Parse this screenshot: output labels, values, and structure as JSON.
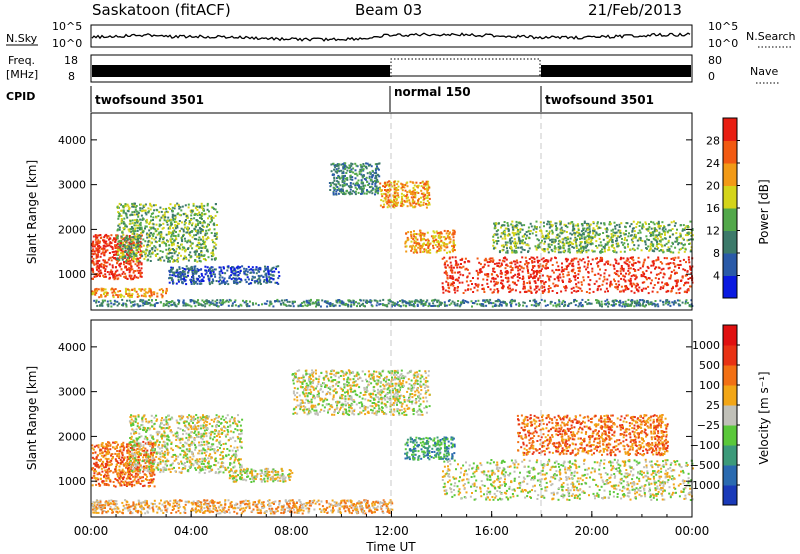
{
  "header": {
    "station": "Saskatoon (fitACF)",
    "beam": "Beam 03",
    "date": "21/Feb/2013"
  },
  "noise_panel": {
    "left_label": "N.Sky",
    "right_label": "N.Search",
    "tick_top": "10^5",
    "tick_bottom": "10^0"
  },
  "freq_panel": {
    "label_line1": "Freq.",
    "label_line2": "[MHz]",
    "left_ticks": [
      "18",
      "8"
    ],
    "right_ticks": [
      "80",
      "0"
    ],
    "right_label": "Nave"
  },
  "cpid_panel": {
    "label": "CPID",
    "segments": [
      {
        "name": "twofsound 3501",
        "start_hour": 0
      },
      {
        "name": "normal 150",
        "start_hour": 12
      },
      {
        "name": "twofsound 3501",
        "start_hour": 18
      }
    ]
  },
  "chart_data": [
    {
      "type": "heatmap",
      "name": "power",
      "ylabel": "Slant Range [km]",
      "ylim": [
        200,
        4600
      ],
      "yticks": [
        "1000",
        "2000",
        "3000",
        "4000"
      ],
      "ytick_values": [
        1000,
        2000,
        3000,
        4000
      ],
      "colorbar": {
        "label": "Power [dB]",
        "tick_labels": [
          "4",
          "8",
          "12",
          "16",
          "20",
          "24",
          "28"
        ],
        "colors": [
          "#0a1ae0",
          "#2a5aa8",
          "#3c7a6a",
          "#52a84a",
          "#d4d41a",
          "#f29a16",
          "#f25a12",
          "#e81e12"
        ]
      },
      "scatter_regions": [
        {
          "x0": 0.0,
          "x1": 2.0,
          "y0": 900,
          "y1": 1900,
          "level": 7
        },
        {
          "x0": 0.0,
          "x1": 3.0,
          "y0": 500,
          "y1": 700,
          "level": 5
        },
        {
          "x0": 1.0,
          "x1": 5.0,
          "y0": 1300,
          "y1": 2600,
          "level": 3
        },
        {
          "x0": 3.0,
          "x1": 7.5,
          "y0": 800,
          "y1": 1200,
          "level": 1
        },
        {
          "x0": 9.5,
          "x1": 11.5,
          "y0": 2800,
          "y1": 3500,
          "level": 2
        },
        {
          "x0": 11.5,
          "x1": 13.5,
          "y0": 2500,
          "y1": 3100,
          "level": 5
        },
        {
          "x0": 12.5,
          "x1": 14.5,
          "y0": 1500,
          "y1": 2000,
          "level": 5
        },
        {
          "x0": 14.0,
          "x1": 24.0,
          "y0": 600,
          "y1": 1400,
          "level": 7
        },
        {
          "x0": 16.0,
          "x1": 24.0,
          "y0": 1500,
          "y1": 2200,
          "level": 3
        },
        {
          "x0": 0.0,
          "x1": 24.0,
          "y0": 300,
          "y1": 450,
          "level": 2
        }
      ]
    },
    {
      "type": "heatmap",
      "name": "velocity",
      "xlabel": "Time UT",
      "ylabel": "Slant Range [km]",
      "ylim": [
        200,
        4600
      ],
      "yticks": [
        "1000",
        "2000",
        "3000",
        "4000"
      ],
      "ytick_values": [
        1000,
        2000,
        3000,
        4000
      ],
      "xticks": [
        "00:00",
        "04:00",
        "08:00",
        "12:00",
        "16:00",
        "20:00",
        "00:00"
      ],
      "xlim": [
        0,
        24
      ],
      "colorbar": {
        "label": "Velocity [m s⁻¹]",
        "tick_labels": [
          "1000",
          "500",
          "100",
          "25",
          "−25",
          "−100",
          "−500",
          "−1000"
        ],
        "colors": [
          "#1a3ab8",
          "#2a6ab0",
          "#3c9a7a",
          "#5ac83a",
          "#c0c0b8",
          "#f2a616",
          "#f27014",
          "#e83214",
          "#e01010"
        ]
      },
      "scatter_regions": [
        {
          "x0": 0.0,
          "x1": 2.5,
          "y0": 900,
          "y1": 1900,
          "level": 6
        },
        {
          "x0": 1.5,
          "x1": 6.0,
          "y0": 1200,
          "y1": 2500,
          "level": 4
        },
        {
          "x0": 5.5,
          "x1": 8.0,
          "y0": 1000,
          "y1": 1300,
          "level": 4
        },
        {
          "x0": 8.0,
          "x1": 13.5,
          "y0": 2500,
          "y1": 3500,
          "level": 4
        },
        {
          "x0": 12.5,
          "x1": 14.5,
          "y0": 1500,
          "y1": 2000,
          "level": 2
        },
        {
          "x0": 14.0,
          "x1": 24.0,
          "y0": 600,
          "y1": 1500,
          "level": 4
        },
        {
          "x0": 17.0,
          "x1": 23.0,
          "y0": 1600,
          "y1": 2500,
          "level": 6
        },
        {
          "x0": 0.0,
          "x1": 12.0,
          "y0": 300,
          "y1": 600,
          "level": 5
        }
      ]
    }
  ]
}
